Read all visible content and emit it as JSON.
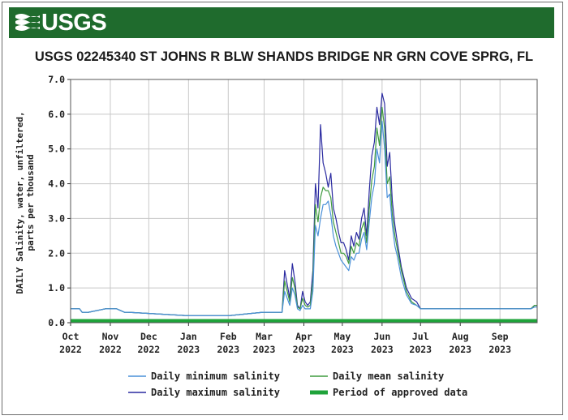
{
  "header": {
    "logo_text": "USGS",
    "title": "USGS 02245340 ST JOHNS R BLW SHANDS BRIDGE NR GRN COVE SPRG, FL"
  },
  "colors": {
    "banner": "#1f6b2d",
    "min_series": "#4a90d9",
    "max_series": "#2a2aa0",
    "mean_series": "#3f9b3f",
    "approved": "#1fa33a"
  },
  "chart_data": {
    "type": "line",
    "title": "USGS 02245340 ST JOHNS R BLW SHANDS BRIDGE NR GRN COVE SPRG, FL",
    "ylabel_line1": "DAILY Salinity, water, unfiltered,",
    "ylabel_line2": "parts per thousand",
    "ylim": [
      0,
      7
    ],
    "yticks": [
      "0.0",
      "1.0",
      "2.0",
      "3.0",
      "4.0",
      "5.0",
      "6.0",
      "7.0"
    ],
    "xlim": [
      "2022-10-01",
      "2023-09-30"
    ],
    "xticks": [
      {
        "date": "2022-10-01",
        "label_top": "Oct",
        "label_bottom": "2022"
      },
      {
        "date": "2022-11-01",
        "label_top": "Nov",
        "label_bottom": "2022"
      },
      {
        "date": "2022-12-01",
        "label_top": "Dec",
        "label_bottom": "2022"
      },
      {
        "date": "2023-01-01",
        "label_top": "Jan",
        "label_bottom": "2023"
      },
      {
        "date": "2023-02-01",
        "label_top": "Feb",
        "label_bottom": "2023"
      },
      {
        "date": "2023-03-01",
        "label_top": "Mar",
        "label_bottom": "2023"
      },
      {
        "date": "2023-04-01",
        "label_top": "Apr",
        "label_bottom": "2023"
      },
      {
        "date": "2023-05-01",
        "label_top": "May",
        "label_bottom": "2023"
      },
      {
        "date": "2023-06-01",
        "label_top": "Jun",
        "label_bottom": "2023"
      },
      {
        "date": "2023-07-01",
        "label_top": "Jul",
        "label_bottom": "2023"
      },
      {
        "date": "2023-08-01",
        "label_top": "Aug",
        "label_bottom": "2023"
      },
      {
        "date": "2023-09-01",
        "label_top": "Sep",
        "label_bottom": "2023"
      }
    ],
    "grid": true,
    "legend_position": "bottom",
    "legend": {
      "min": "Daily minimum salinity",
      "mean": "Daily mean salinity",
      "max": "Daily maximum salinity",
      "approved": "Period of approved data"
    },
    "approved_period": [
      "2022-10-01",
      "2023-09-30"
    ],
    "series": [
      {
        "name": "Daily maximum salinity",
        "key": "max",
        "x": [
          "2022-10-01",
          "2022-10-08",
          "2022-10-10",
          "2022-10-15",
          "2022-10-28",
          "2022-11-06",
          "2022-11-12",
          "2022-11-15",
          "2023-01-01",
          "2023-02-01",
          "2023-02-28",
          "2023-03-15",
          "2023-03-17",
          "2023-03-19",
          "2023-03-21",
          "2023-03-23",
          "2023-03-25",
          "2023-03-27",
          "2023-03-29",
          "2023-03-31",
          "2023-04-02",
          "2023-04-04",
          "2023-04-06",
          "2023-04-08",
          "2023-04-10",
          "2023-04-12",
          "2023-04-14",
          "2023-04-16",
          "2023-04-18",
          "2023-04-20",
          "2023-04-22",
          "2023-04-24",
          "2023-04-26",
          "2023-04-28",
          "2023-04-30",
          "2023-05-02",
          "2023-05-04",
          "2023-05-06",
          "2023-05-08",
          "2023-05-10",
          "2023-05-12",
          "2023-05-14",
          "2023-05-16",
          "2023-05-18",
          "2023-05-20",
          "2023-05-22",
          "2023-05-24",
          "2023-05-26",
          "2023-05-28",
          "2023-05-30",
          "2023-06-01",
          "2023-06-03",
          "2023-06-05",
          "2023-06-07",
          "2023-06-09",
          "2023-06-11",
          "2023-06-13",
          "2023-06-16",
          "2023-06-20",
          "2023-06-24",
          "2023-06-28",
          "2023-07-01",
          "2023-07-05",
          "2023-07-10",
          "2023-08-01",
          "2023-09-01",
          "2023-09-25",
          "2023-09-28",
          "2023-09-30"
        ],
        "y": [
          0.4,
          0.4,
          0.3,
          0.3,
          0.4,
          0.4,
          0.3,
          0.3,
          0.2,
          0.2,
          0.3,
          0.3,
          1.5,
          1.1,
          0.7,
          1.7,
          1.2,
          0.5,
          0.4,
          0.9,
          0.6,
          0.5,
          0.6,
          1.5,
          4.0,
          3.3,
          5.7,
          4.6,
          4.3,
          3.9,
          4.3,
          3.3,
          3.0,
          2.6,
          2.3,
          2.3,
          2.1,
          1.8,
          2.5,
          2.2,
          2.6,
          2.4,
          3.0,
          3.3,
          2.5,
          3.8,
          4.8,
          5.2,
          6.2,
          5.7,
          6.6,
          6.3,
          4.5,
          4.9,
          3.5,
          2.8,
          2.3,
          1.6,
          1.0,
          0.7,
          0.6,
          0.4,
          0.4,
          0.4,
          0.4,
          0.4,
          0.4,
          0.5,
          0.5
        ]
      },
      {
        "name": "Daily mean salinity",
        "key": "mean",
        "x": [
          "2022-10-01",
          "2022-10-08",
          "2022-10-10",
          "2022-10-15",
          "2022-10-28",
          "2022-11-06",
          "2022-11-12",
          "2022-11-15",
          "2023-01-01",
          "2023-02-01",
          "2023-02-28",
          "2023-03-15",
          "2023-03-17",
          "2023-03-19",
          "2023-03-21",
          "2023-03-23",
          "2023-03-25",
          "2023-03-27",
          "2023-03-29",
          "2023-03-31",
          "2023-04-02",
          "2023-04-04",
          "2023-04-06",
          "2023-04-08",
          "2023-04-10",
          "2023-04-12",
          "2023-04-14",
          "2023-04-16",
          "2023-04-18",
          "2023-04-20",
          "2023-04-22",
          "2023-04-24",
          "2023-04-26",
          "2023-04-28",
          "2023-04-30",
          "2023-05-02",
          "2023-05-04",
          "2023-05-06",
          "2023-05-08",
          "2023-05-10",
          "2023-05-12",
          "2023-05-14",
          "2023-05-16",
          "2023-05-18",
          "2023-05-20",
          "2023-05-22",
          "2023-05-24",
          "2023-05-26",
          "2023-05-28",
          "2023-05-30",
          "2023-06-01",
          "2023-06-03",
          "2023-06-05",
          "2023-06-07",
          "2023-06-09",
          "2023-06-11",
          "2023-06-13",
          "2023-06-16",
          "2023-06-20",
          "2023-06-24",
          "2023-06-28",
          "2023-07-01",
          "2023-07-05",
          "2023-07-10",
          "2023-08-01",
          "2023-09-01",
          "2023-09-25",
          "2023-09-28",
          "2023-09-30"
        ],
        "y": [
          0.4,
          0.4,
          0.3,
          0.3,
          0.4,
          0.4,
          0.3,
          0.3,
          0.2,
          0.2,
          0.3,
          0.3,
          1.2,
          0.9,
          0.6,
          1.3,
          1.0,
          0.45,
          0.4,
          0.7,
          0.5,
          0.45,
          0.5,
          1.2,
          3.4,
          2.9,
          3.6,
          3.9,
          3.8,
          3.8,
          3.6,
          2.9,
          2.6,
          2.3,
          2.0,
          2.0,
          1.9,
          1.7,
          2.2,
          2.0,
          2.3,
          2.2,
          2.7,
          2.9,
          2.3,
          3.3,
          4.1,
          4.5,
          5.6,
          5.1,
          6.2,
          5.6,
          4.0,
          4.2,
          3.1,
          2.5,
          2.1,
          1.5,
          0.9,
          0.6,
          0.5,
          0.4,
          0.4,
          0.4,
          0.4,
          0.4,
          0.4,
          0.5,
          0.5
        ]
      },
      {
        "name": "Daily minimum salinity",
        "key": "min",
        "x": [
          "2022-10-01",
          "2022-10-08",
          "2022-10-10",
          "2022-10-15",
          "2022-10-28",
          "2022-11-06",
          "2022-11-12",
          "2022-11-15",
          "2023-01-01",
          "2023-02-01",
          "2023-02-28",
          "2023-03-15",
          "2023-03-17",
          "2023-03-19",
          "2023-03-21",
          "2023-03-23",
          "2023-03-25",
          "2023-03-27",
          "2023-03-29",
          "2023-03-31",
          "2023-04-02",
          "2023-04-04",
          "2023-04-06",
          "2023-04-08",
          "2023-04-10",
          "2023-04-12",
          "2023-04-14",
          "2023-04-16",
          "2023-04-18",
          "2023-04-20",
          "2023-04-22",
          "2023-04-24",
          "2023-04-26",
          "2023-04-28",
          "2023-04-30",
          "2023-05-02",
          "2023-05-04",
          "2023-05-06",
          "2023-05-08",
          "2023-05-10",
          "2023-05-12",
          "2023-05-14",
          "2023-05-16",
          "2023-05-18",
          "2023-05-20",
          "2023-05-22",
          "2023-05-24",
          "2023-05-26",
          "2023-05-28",
          "2023-05-30",
          "2023-06-01",
          "2023-06-03",
          "2023-06-05",
          "2023-06-07",
          "2023-06-09",
          "2023-06-11",
          "2023-06-13",
          "2023-06-16",
          "2023-06-20",
          "2023-06-24",
          "2023-06-28",
          "2023-07-01",
          "2023-07-05",
          "2023-07-10",
          "2023-08-01",
          "2023-09-01",
          "2023-09-25",
          "2023-09-28",
          "2023-09-30"
        ],
        "y": [
          0.4,
          0.4,
          0.3,
          0.3,
          0.4,
          0.4,
          0.3,
          0.3,
          0.2,
          0.2,
          0.3,
          0.3,
          0.9,
          0.7,
          0.5,
          1.0,
          0.8,
          0.4,
          0.35,
          0.5,
          0.4,
          0.4,
          0.4,
          0.9,
          2.8,
          2.5,
          3.0,
          3.4,
          3.4,
          3.5,
          3.1,
          2.5,
          2.2,
          2.0,
          1.8,
          1.7,
          1.6,
          1.5,
          1.9,
          1.8,
          2.0,
          2.0,
          2.4,
          2.6,
          2.1,
          2.9,
          3.6,
          4.0,
          5.0,
          4.6,
          5.8,
          5.0,
          3.6,
          3.7,
          2.8,
          2.2,
          1.9,
          1.3,
          0.8,
          0.55,
          0.5,
          0.4,
          0.4,
          0.4,
          0.4,
          0.4,
          0.4,
          0.45,
          0.45
        ]
      }
    ]
  }
}
